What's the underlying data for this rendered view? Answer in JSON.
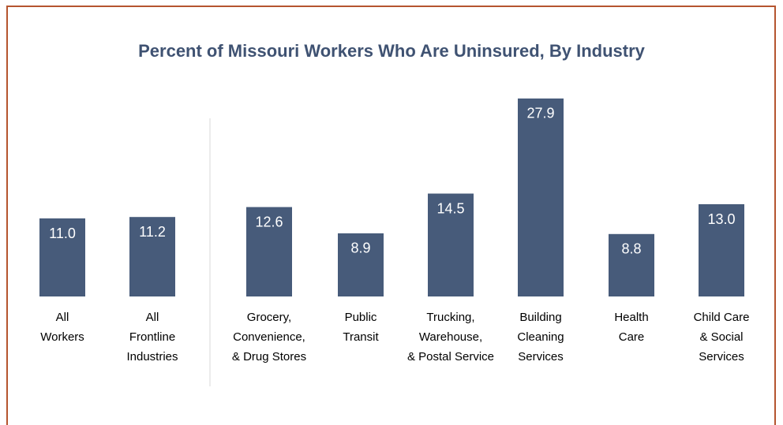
{
  "chart_data": {
    "type": "bar",
    "title": "Percent of Missouri Workers Who Are Uninsured, By Industry",
    "categories": [
      [
        "All",
        "Workers"
      ],
      [
        "All",
        "Frontline",
        "Industries"
      ],
      [
        "Grocery,",
        "Convenience,",
        "& Drug Stores"
      ],
      [
        "Public",
        "Transit"
      ],
      [
        "Trucking,",
        "Warehouse,",
        "& Postal Service"
      ],
      [
        "Building",
        "Cleaning",
        "Services"
      ],
      [
        "Health",
        "Care"
      ],
      [
        "Child Care",
        "& Social",
        "Services"
      ]
    ],
    "values": [
      11,
      11.2,
      12.6,
      8.9,
      14.5,
      27.9,
      8.8,
      13
    ],
    "value_labels": [
      "11.0",
      "11.2",
      "12.6",
      "8.9",
      "14.5",
      "27.9",
      "8.8",
      "13.0"
    ],
    "color": "#475b7a"
  }
}
